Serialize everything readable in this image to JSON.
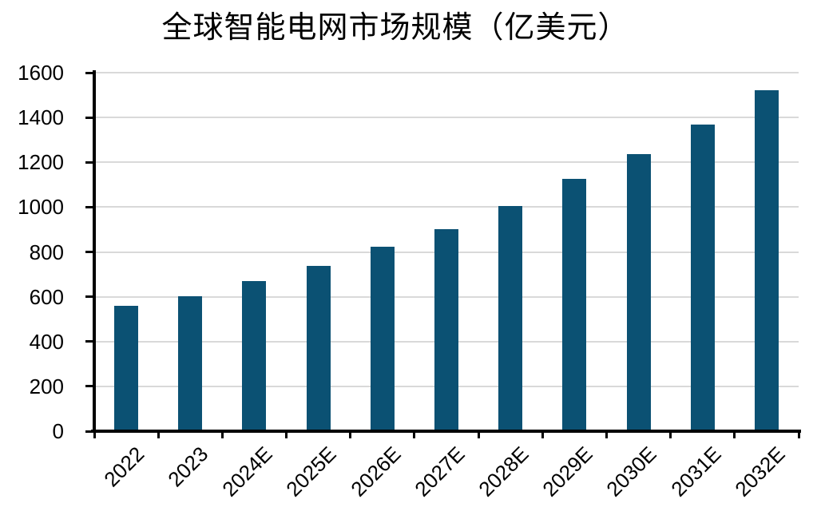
{
  "chart_data": {
    "type": "bar",
    "title": "全球智能电网市场规模（亿美元）",
    "categories": [
      "2022",
      "2023",
      "2024E",
      "2025E",
      "2026E",
      "2027E",
      "2028E",
      "2029E",
      "2030E",
      "2031E",
      "2032E"
    ],
    "values": [
      558,
      604,
      670,
      738,
      822,
      902,
      1004,
      1125,
      1235,
      1370,
      1520
    ],
    "xlabel": "",
    "ylabel": "",
    "ylim": [
      0,
      1600
    ],
    "ytick_step": 200,
    "yticks": [
      0,
      200,
      400,
      600,
      800,
      1000,
      1200,
      1400,
      1600
    ],
    "grid": true,
    "legend_position": "none",
    "colors": {
      "bar": "#0B5173",
      "gridline": "#D9D9D9",
      "axis": "#000000",
      "text": "#000000",
      "background": "#FFFFFF"
    }
  }
}
